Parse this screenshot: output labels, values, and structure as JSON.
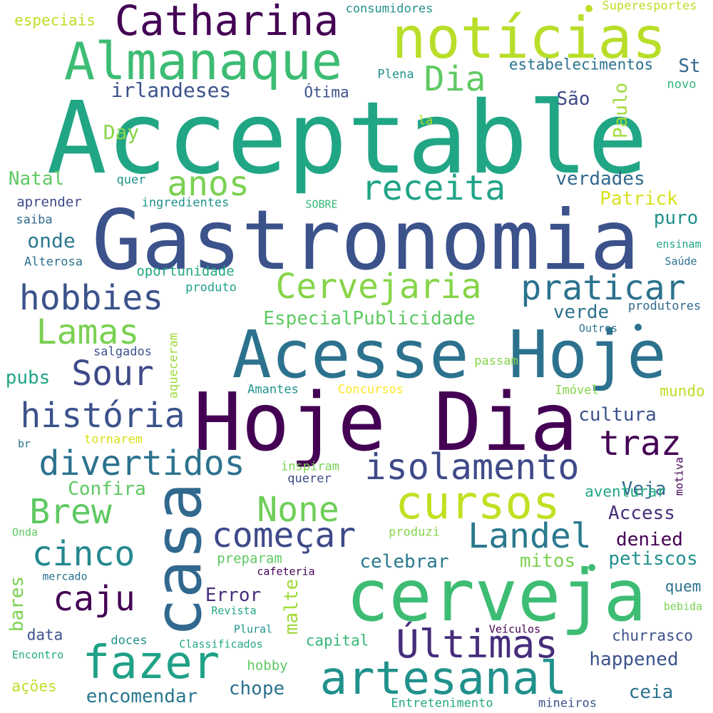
{
  "palette": {
    "background": "#ffffff",
    "c1": "#440154",
    "c2": "#472c7a",
    "c3": "#3b518b",
    "c4": "#2c718e",
    "c5": "#21908d",
    "c6": "#27ad81",
    "c7": "#5cc863",
    "c8": "#aadc32",
    "c9": "#fde725"
  },
  "words": [
    {
      "text": "Acceptable",
      "color": "#21a685"
    },
    {
      "text": "Gastronomia",
      "color": "#3b528b"
    },
    {
      "text": "Hoje Dia",
      "color": "#440154"
    },
    {
      "text": "Acesse Hoje",
      "color": "#2c728e"
    },
    {
      "text": "notícias",
      "color": "#b8de29"
    },
    {
      "text": "cerveja",
      "color": "#3dbc74"
    },
    {
      "text": "casa",
      "color": "#31688e"
    },
    {
      "text": "Almanaque",
      "color": "#3dbc74"
    },
    {
      "text": "Catharina",
      "color": "#440154"
    },
    {
      "text": "artesanal",
      "color": "#21918c"
    },
    {
      "text": "fazer",
      "color": "#1fa187"
    },
    {
      "text": "cursos",
      "color": "#c2df23"
    },
    {
      "text": "Últimas",
      "color": "#472d7b"
    },
    {
      "text": "isolamento",
      "color": "#3e4a89"
    },
    {
      "text": "Landel",
      "color": "#2a788e"
    },
    {
      "text": "começar",
      "color": "#3e4a89"
    },
    {
      "text": "None",
      "color": "#6ece58"
    },
    {
      "text": "história",
      "color": "#3b528b"
    },
    {
      "text": "divertidos",
      "color": "#2c728e"
    },
    {
      "text": "receita",
      "color": "#20a486"
    },
    {
      "text": "praticar",
      "color": "#2c728e"
    },
    {
      "text": "Cervejaria",
      "color": "#86d549"
    },
    {
      "text": "hobbies",
      "color": "#3b528b"
    },
    {
      "text": "Sour",
      "color": "#3e4a89"
    },
    {
      "text": "cinco",
      "color": "#23888e"
    },
    {
      "text": "Brew",
      "color": "#5ec962"
    },
    {
      "text": "caju",
      "color": "#440154"
    },
    {
      "text": "Lamas",
      "color": "#7ad151"
    },
    {
      "text": "anos",
      "color": "#7ad151"
    },
    {
      "text": "traz",
      "color": "#440154"
    },
    {
      "text": "Dia",
      "color": "#5ec962"
    },
    {
      "text": "irlandeses",
      "color": "#3b528b"
    },
    {
      "text": "Paulo",
      "color": "#a0da39"
    },
    {
      "text": "São",
      "color": "#3e4a89"
    },
    {
      "text": "St",
      "color": "#31688e"
    },
    {
      "text": "estabelecimentos",
      "color": "#2c728e"
    },
    {
      "text": "consumidores",
      "color": "#21918c"
    },
    {
      "text": "especiais",
      "color": "#bddf26"
    },
    {
      "text": "Superesportes",
      "color": "#bddf26"
    },
    {
      "text": "Plena",
      "color": "#21918c"
    },
    {
      "text": "Ótima",
      "color": "#3b528b"
    },
    {
      "text": "novo",
      "color": "#35b779"
    },
    {
      "text": "la",
      "color": "#b5de2b"
    },
    {
      "text": "Day",
      "color": "#86d549"
    },
    {
      "text": "verdades",
      "color": "#31688e"
    },
    {
      "text": "Patrick",
      "color": "#d8e219"
    },
    {
      "text": "Natal",
      "color": "#5ec962"
    },
    {
      "text": "quer",
      "color": "#21918c"
    },
    {
      "text": "aprender",
      "color": "#3e4a89"
    },
    {
      "text": "ingredientes",
      "color": "#21918c"
    },
    {
      "text": "SOBRE",
      "color": "#35b779"
    },
    {
      "text": "puro",
      "color": "#21918c"
    },
    {
      "text": "saiba",
      "color": "#31688e"
    },
    {
      "text": "onde",
      "color": "#2a788e"
    },
    {
      "text": "ensinam",
      "color": "#20a486"
    },
    {
      "text": "Alterosa",
      "color": "#2c728e"
    },
    {
      "text": "Saúde",
      "color": "#2c728e"
    },
    {
      "text": "oportunidade",
      "color": "#22a884"
    },
    {
      "text": "produto",
      "color": "#1fa187"
    },
    {
      "text": "produtores",
      "color": "#31688e"
    },
    {
      "text": "EspecialPublicidade",
      "color": "#5ec962"
    },
    {
      "text": "verde",
      "color": "#2c728e"
    },
    {
      "text": "Outros",
      "color": "#2c728e"
    },
    {
      "text": "salgados",
      "color": "#3b528b"
    },
    {
      "text": "aqueceram",
      "color": "#a0da39"
    },
    {
      "text": "passam",
      "color": "#86d549"
    },
    {
      "text": "pubs",
      "color": "#20a486"
    },
    {
      "text": "Amantes",
      "color": "#21918c"
    },
    {
      "text": "Concursos",
      "color": "#fde725"
    },
    {
      "text": "Imóvel",
      "color": "#86d549"
    },
    {
      "text": "mundo",
      "color": "#bddf26"
    },
    {
      "text": "cultura",
      "color": "#3b528b"
    },
    {
      "text": "tornarem",
      "color": "#d8e219"
    },
    {
      "text": "br",
      "color": "#2c728e"
    },
    {
      "text": "inspiram",
      "color": "#7ad151"
    },
    {
      "text": "querer",
      "color": "#3e4a89"
    },
    {
      "text": "motiva",
      "color": "#440154"
    },
    {
      "text": "Veja",
      "color": "#31688e"
    },
    {
      "text": "Confira",
      "color": "#5ec962"
    },
    {
      "text": "aventurar",
      "color": "#22a884"
    },
    {
      "text": "Access",
      "color": "#472d7b"
    },
    {
      "text": "Onda",
      "color": "#5ec962"
    },
    {
      "text": "produzi",
      "color": "#86d549"
    },
    {
      "text": "denied",
      "color": "#440154"
    },
    {
      "text": "preparam",
      "color": "#5ec962"
    },
    {
      "text": "mitos",
      "color": "#7ad151"
    },
    {
      "text": "petiscos",
      "color": "#21918c"
    },
    {
      "text": "celebrar",
      "color": "#2a788e"
    },
    {
      "text": "mercado",
      "color": "#2c728e"
    },
    {
      "text": "cafeteria",
      "color": "#440154"
    },
    {
      "text": "Error",
      "color": "#472d7b"
    },
    {
      "text": "malte",
      "color": "#a0da39"
    },
    {
      "text": "bares",
      "color": "#7ad151"
    },
    {
      "text": "Revista",
      "color": "#22a884"
    },
    {
      "text": "quem",
      "color": "#2c728e"
    },
    {
      "text": "bebida",
      "color": "#7ad151"
    },
    {
      "text": "Plural",
      "color": "#21918c"
    },
    {
      "text": "Veículos",
      "color": "#440154"
    },
    {
      "text": "data",
      "color": "#3b528b"
    },
    {
      "text": "doces",
      "color": "#21918c"
    },
    {
      "text": "Classificados",
      "color": "#22a884"
    },
    {
      "text": "capital",
      "color": "#35b779"
    },
    {
      "text": "churrasco",
      "color": "#3b528b"
    },
    {
      "text": "Encontro",
      "color": "#22a884"
    },
    {
      "text": "hobby",
      "color": "#5ec962"
    },
    {
      "text": "happened",
      "color": "#3b528b"
    },
    {
      "text": "ações",
      "color": "#bddf26"
    },
    {
      "text": "encomendar",
      "color": "#2a788e"
    },
    {
      "text": "chope",
      "color": "#2c728e"
    },
    {
      "text": "ceia",
      "color": "#2c728e"
    },
    {
      "text": "Entretenimento",
      "color": "#22a884"
    },
    {
      "text": "mineiros",
      "color": "#3b528b"
    }
  ]
}
